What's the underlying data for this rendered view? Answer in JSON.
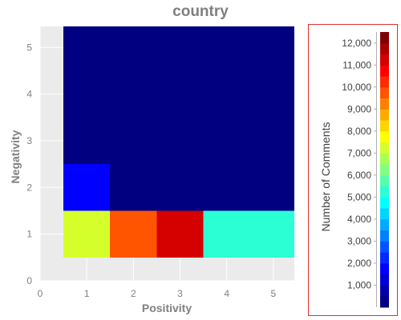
{
  "chart_data": {
    "type": "heatmap",
    "title": "country",
    "xlabel": "Positivity",
    "ylabel": "Negativity",
    "x_ticks": [
      "0",
      "1",
      "2",
      "3",
      "4",
      "5"
    ],
    "y_ticks": [
      "0",
      "1",
      "2",
      "3",
      "4",
      "5"
    ],
    "xlim": [
      0,
      5.45
    ],
    "ylim": [
      0,
      5.45
    ],
    "grid": true,
    "legend_placement": "right",
    "colorbar": {
      "title": "Number of Comments",
      "range": [
        0,
        12500
      ],
      "ticks": [
        "1,000",
        "2,000",
        "3,000",
        "4,000",
        "5,000",
        "6,000",
        "7,000",
        "8,000",
        "9,000",
        "10,000",
        "11,000",
        "12,000"
      ],
      "palette": "jet",
      "steps": 25
    },
    "cells": [
      {
        "x": 1,
        "y": 1,
        "value": 7200
      },
      {
        "x": 2,
        "y": 1,
        "value": 9800
      },
      {
        "x": 3,
        "y": 1,
        "value": 11200
      },
      {
        "x": 4,
        "y": 1,
        "value": 5400
      },
      {
        "x": 5,
        "y": 1,
        "value": 5400
      },
      {
        "x": 1,
        "y": 2,
        "value": 1600
      },
      {
        "x": 2,
        "y": 2,
        "value": 200
      },
      {
        "x": 3,
        "y": 2,
        "value": 200
      },
      {
        "x": 4,
        "y": 2,
        "value": 200
      },
      {
        "x": 5,
        "y": 2,
        "value": 200
      },
      {
        "x": 1,
        "y": 3,
        "value": 200
      },
      {
        "x": 2,
        "y": 3,
        "value": 200
      },
      {
        "x": 3,
        "y": 3,
        "value": 200
      },
      {
        "x": 4,
        "y": 3,
        "value": 200
      },
      {
        "x": 5,
        "y": 3,
        "value": 200
      },
      {
        "x": 1,
        "y": 4,
        "value": 200
      },
      {
        "x": 2,
        "y": 4,
        "value": 200
      },
      {
        "x": 3,
        "y": 4,
        "value": 200
      },
      {
        "x": 4,
        "y": 4,
        "value": 200
      },
      {
        "x": 5,
        "y": 4,
        "value": 200
      },
      {
        "x": 1,
        "y": 5,
        "value": 200
      },
      {
        "x": 2,
        "y": 5,
        "value": 200
      },
      {
        "x": 3,
        "y": 5,
        "value": 200
      },
      {
        "x": 4,
        "y": 5,
        "value": 200
      },
      {
        "x": 5,
        "y": 5,
        "value": 200
      }
    ]
  },
  "colors": {
    "plot_background": "#ebebeb",
    "grid_line": "#ffffff",
    "legend_border": "#e03030",
    "text_muted": "#808080",
    "text_dark": "#404040"
  }
}
